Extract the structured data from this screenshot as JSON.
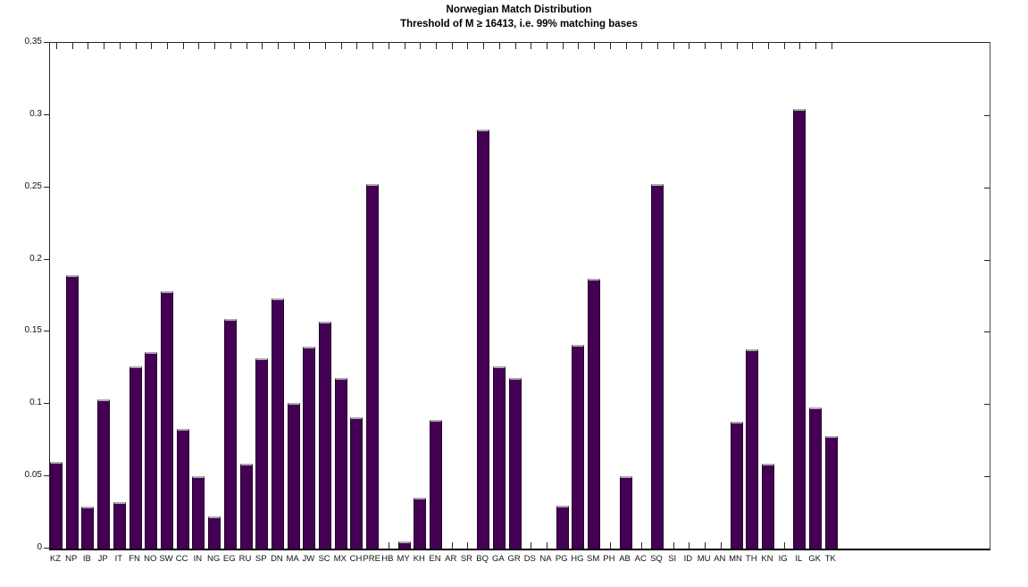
{
  "chart_data": {
    "type": "bar",
    "title": "Norwegian Match Distribution",
    "subtitle": "Threshold of M ≥ 16413, i.e. 99% matching bases",
    "xlabel": "",
    "ylabel": "",
    "ylim": [
      0,
      0.35
    ],
    "ytick_values": [
      0,
      0.05,
      0.1,
      0.15,
      0.2,
      0.25,
      0.3,
      0.35
    ],
    "ytick_labels": [
      "0",
      "0.05",
      "0.1",
      "0.15",
      "0.2",
      "0.25",
      "0.3",
      "0.35"
    ],
    "grid": false,
    "legend": null,
    "bar_color": "#440154",
    "categories": [
      "KZ",
      "NP",
      "IB",
      "JP",
      "IT",
      "FN",
      "NO",
      "SW",
      "CC",
      "IN",
      "NG",
      "EG",
      "RU",
      "SP",
      "DN",
      "MA",
      "JW",
      "SC",
      "MX",
      "CH",
      "PRE",
      "HB",
      "MY",
      "KH",
      "EN",
      "AR",
      "SR",
      "BQ",
      "GA",
      "GR",
      "DS",
      "NA",
      "PG",
      "HG",
      "SM",
      "PH",
      "AB",
      "AC",
      "SQ",
      "SI",
      "ID",
      "MU",
      "AN",
      "MN",
      "TH",
      "KN",
      "IG",
      "IL",
      "GK",
      "TK"
    ],
    "values": [
      0.06,
      0.189,
      0.029,
      0.103,
      0.032,
      0.126,
      0.136,
      0.178,
      0.083,
      0.05,
      0.022,
      0.159,
      0.059,
      0.132,
      0.173,
      0.101,
      0.14,
      0.157,
      0.118,
      0.091,
      0.252,
      0,
      0.005,
      0.035,
      0.089,
      0,
      0,
      0.29,
      0.126,
      0.118,
      0,
      0,
      0.03,
      0.141,
      0.187,
      0,
      0.05,
      0,
      0.252,
      0,
      0,
      0,
      0,
      0.088,
      0.138,
      0.059,
      0,
      0.304,
      0.098,
      0.078
    ]
  }
}
